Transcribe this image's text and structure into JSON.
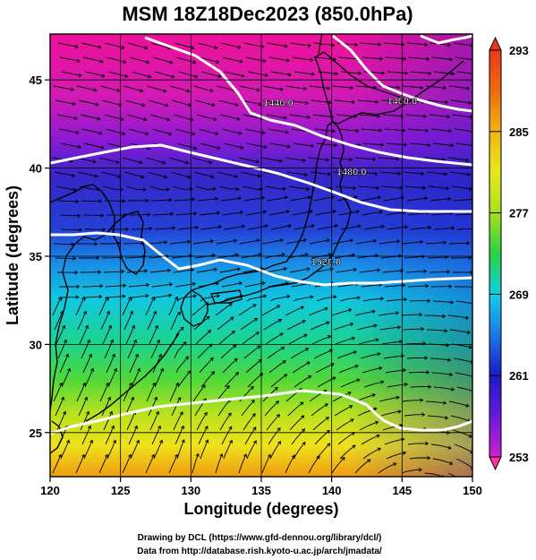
{
  "figure": {
    "title": "MSM 18Z18Dec2023 (850.0hPa)",
    "xlabel": "Longitude (degrees)",
    "ylabel": "Latitude  (degrees)",
    "credits": [
      "Drawing by DCL (https://www.gfd-dennou.org/library/dcl/)",
      "Data from http://database.rish.kyoto-u.ac.jp/arch/jmadata/"
    ]
  },
  "map": {
    "lon_range": [
      120,
      150
    ],
    "lat_range": [
      22.5,
      47.6
    ],
    "lon_ticks": [
      120,
      125,
      130,
      135,
      140,
      145,
      150
    ],
    "lat_ticks": [
      25,
      30,
      35,
      40,
      45
    ],
    "grid": true,
    "fill_field": "temperature (K)",
    "vector_field": "wind streamlines",
    "contour_labels": [
      {
        "text": "1440.0",
        "lon": 136.2,
        "lat": 43.5
      },
      {
        "text": "1400.0",
        "lon": 145.0,
        "lat": 43.6
      },
      {
        "text": "1480.0",
        "lon": 141.4,
        "lat": 39.6
      },
      {
        "text": "1520.0",
        "lon": 139.6,
        "lat": 34.5
      }
    ],
    "colors": {
      "pink": "#ee1199",
      "magenta": "#b418d8",
      "blue": "#2a26c8",
      "cyan": "#10c4e0",
      "green": "#2ad244",
      "yellow": "#e8e81e",
      "orange": "#f0a010",
      "contour": "#ffffff",
      "coast": "#000000"
    }
  },
  "colorbar": {
    "min": 253,
    "max": 293,
    "tick_labels": [
      "293",
      "285",
      "277",
      "269",
      "261",
      "253"
    ],
    "tick_values": [
      293,
      285,
      277,
      269,
      261,
      253
    ],
    "colors": [
      "#ff3399",
      "#cc22cc",
      "#6a1adc",
      "#1a1ac8",
      "#1e78e6",
      "#10d0e8",
      "#18d090",
      "#2ad244",
      "#a6e020",
      "#e8e81e",
      "#f0b414",
      "#f06a10",
      "#e83a1a"
    ]
  }
}
